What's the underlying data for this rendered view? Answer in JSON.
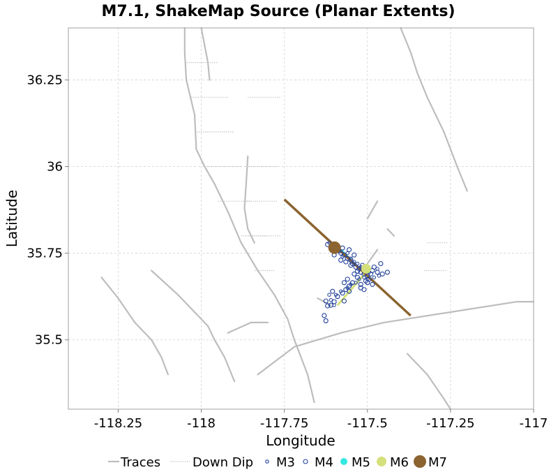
{
  "chart_data": {
    "type": "scatter",
    "title": "M7.1, ShakeMap Source (Planar Extents)",
    "xlabel": "Longitude",
    "ylabel": "Latitude",
    "xlim": [
      -118.4,
      -117.0
    ],
    "ylim": [
      35.3,
      36.4
    ],
    "x_ticks": [
      -118.25,
      -118,
      -117.75,
      -117.5,
      -117.25,
      -117
    ],
    "x_tick_labels": [
      "-118.25",
      "-118",
      "-117.75",
      "-117.5",
      "-117.25",
      "-117"
    ],
    "y_ticks": [
      35.5,
      35.75,
      36,
      36.25
    ],
    "y_tick_labels": [
      "35.5",
      "35.75",
      "36",
      "36.25"
    ],
    "grid": true,
    "legend_position": "bottom",
    "legend": [
      {
        "label": "Traces",
        "kind": "line",
        "color": "#bdbdbd"
      },
      {
        "label": "Down Dip",
        "kind": "dotted-line",
        "color": "#c4c4c4"
      },
      {
        "label": "M3",
        "kind": "marker",
        "color": "#1f3f99",
        "size": 3
      },
      {
        "label": "M4",
        "kind": "marker",
        "color": "#1f3f99",
        "size": 4
      },
      {
        "label": "M5",
        "kind": "marker",
        "color": "#33e8e0",
        "size": 5
      },
      {
        "label": "M6",
        "kind": "marker",
        "color": "#d4e07a",
        "size": 7
      },
      {
        "label": "M7",
        "kind": "marker",
        "color": "#8b6430",
        "size": 9
      }
    ],
    "rupture": {
      "name": "M7",
      "color": "#8b6430",
      "line": [
        [
          -117.75,
          35.905
        ],
        [
          -117.37,
          35.57
        ]
      ],
      "hypocenter": [
        -117.599,
        35.766
      ]
    },
    "m5_line": {
      "color": "#33e8e0",
      "line": [
        [
          -117.58,
          35.76
        ],
        [
          -117.55,
          35.73
        ]
      ]
    },
    "m6_line": {
      "color": "#d4e07a",
      "line": [
        [
          -117.59,
          35.6
        ],
        [
          -117.5,
          35.7
        ]
      ]
    },
    "m6_events": [
      [
        -117.504,
        35.705
      ]
    ],
    "m4_events": [
      [
        -117.62,
        35.775
      ],
      [
        -117.605,
        35.77
      ],
      [
        -117.595,
        35.76
      ],
      [
        -117.58,
        35.75
      ],
      [
        -117.57,
        35.745
      ],
      [
        -117.56,
        35.735
      ],
      [
        -117.55,
        35.73
      ],
      [
        -117.545,
        35.72
      ],
      [
        -117.535,
        35.71
      ],
      [
        -117.525,
        35.705
      ],
      [
        -117.52,
        35.695
      ],
      [
        -117.51,
        35.69
      ],
      [
        -117.5,
        35.685
      ],
      [
        -117.49,
        35.69
      ],
      [
        -117.485,
        35.7
      ],
      [
        -117.48,
        35.71
      ],
      [
        -117.47,
        35.695
      ],
      [
        -117.46,
        35.72
      ],
      [
        -117.455,
        35.69
      ],
      [
        -117.44,
        35.695
      ],
      [
        -117.53,
        35.68
      ],
      [
        -117.545,
        35.665
      ],
      [
        -117.555,
        35.655
      ],
      [
        -117.565,
        35.645
      ],
      [
        -117.575,
        35.635
      ],
      [
        -117.59,
        35.625
      ],
      [
        -117.6,
        35.61
      ],
      [
        -117.61,
        35.6
      ],
      [
        -117.62,
        35.598
      ],
      [
        -117.625,
        35.612
      ],
      [
        -117.57,
        35.665
      ],
      [
        -117.56,
        35.675
      ],
      [
        -117.54,
        35.69
      ],
      [
        -117.52,
        35.66
      ],
      [
        -117.505,
        35.67
      ],
      [
        -117.495,
        35.675
      ],
      [
        -117.54,
        35.745
      ],
      [
        -117.555,
        35.76
      ],
      [
        -117.575,
        35.765
      ],
      [
        -117.59,
        35.77
      ],
      [
        -117.6,
        35.745
      ],
      [
        -117.58,
        35.73
      ],
      [
        -117.565,
        35.725
      ],
      [
        -117.55,
        35.715
      ],
      [
        -117.53,
        35.698
      ],
      [
        -117.515,
        35.715
      ],
      [
        -117.5,
        35.665
      ],
      [
        -117.485,
        35.66
      ],
      [
        -117.51,
        35.645
      ],
      [
        -117.52,
        35.65
      ],
      [
        -117.63,
        35.57
      ],
      [
        -117.605,
        35.64
      ],
      [
        -117.625,
        35.555
      ],
      [
        -117.57,
        35.612
      ],
      [
        -117.555,
        35.64
      ]
    ],
    "m3_events": [
      [
        -117.615,
        35.78
      ],
      [
        -117.6,
        35.755
      ],
      [
        -117.585,
        35.755
      ],
      [
        -117.575,
        35.74
      ],
      [
        -117.56,
        35.75
      ],
      [
        -117.55,
        35.735
      ],
      [
        -117.54,
        35.725
      ],
      [
        -117.53,
        35.72
      ],
      [
        -117.52,
        35.71
      ],
      [
        -117.505,
        35.7
      ],
      [
        -117.495,
        35.695
      ],
      [
        -117.5,
        35.675
      ],
      [
        -117.51,
        35.68
      ],
      [
        -117.525,
        35.675
      ],
      [
        -117.535,
        35.665
      ],
      [
        -117.55,
        35.66
      ],
      [
        -117.56,
        35.65
      ],
      [
        -117.58,
        35.64
      ],
      [
        -117.595,
        35.63
      ],
      [
        -117.61,
        35.615
      ],
      [
        -117.615,
        35.63
      ],
      [
        -117.6,
        35.6
      ],
      [
        -117.48,
        35.68
      ],
      [
        -117.47,
        35.705
      ],
      [
        -117.465,
        35.685
      ]
    ],
    "traces": [
      [
        [
          -118.0,
          36.4
        ],
        [
          -117.98,
          36.3
        ],
        [
          -117.975,
          36.25
        ]
      ],
      [
        [
          -118.05,
          36.4
        ],
        [
          -118.05,
          36.33
        ],
        [
          -118.045,
          36.25
        ],
        [
          -118.02,
          36.15
        ],
        [
          -118.015,
          36.05
        ],
        [
          -117.99,
          36.0
        ],
        [
          -117.96,
          35.95
        ],
        [
          -117.92,
          35.87
        ],
        [
          -117.88,
          35.78
        ],
        [
          -117.83,
          35.7
        ],
        [
          -117.78,
          35.63
        ]
      ],
      [
        [
          -117.78,
          35.63
        ],
        [
          -117.74,
          35.56
        ],
        [
          -117.72,
          35.5
        ],
        [
          -117.7,
          35.45
        ],
        [
          -117.68,
          35.4
        ],
        [
          -117.66,
          35.32
        ]
      ],
      [
        [
          -117.86,
          36.03
        ],
        [
          -117.865,
          35.95
        ],
        [
          -117.87,
          35.88
        ],
        [
          -117.86,
          35.82
        ],
        [
          -117.84,
          35.78
        ]
      ],
      [
        [
          -118.15,
          35.7
        ],
        [
          -118.07,
          35.63
        ],
        [
          -118.02,
          35.58
        ],
        [
          -117.98,
          35.54
        ],
        [
          -117.96,
          35.5
        ],
        [
          -117.93,
          35.45
        ],
        [
          -117.9,
          35.38
        ]
      ],
      [
        [
          -118.3,
          35.68
        ],
        [
          -118.25,
          35.62
        ],
        [
          -118.2,
          35.55
        ],
        [
          -118.15,
          35.5
        ],
        [
          -118.12,
          35.45
        ],
        [
          -118.1,
          35.4
        ]
      ],
      [
        [
          -117.92,
          35.52
        ],
        [
          -117.85,
          35.55
        ],
        [
          -117.8,
          35.55
        ]
      ],
      [
        [
          -117.44,
          35.82
        ],
        [
          -117.42,
          35.8
        ]
      ],
      [
        [
          -117.47,
          35.76
        ],
        [
          -117.5,
          35.72
        ]
      ],
      [
        [
          -117.5,
          35.85
        ],
        [
          -117.47,
          35.9
        ]
      ],
      [
        [
          -117.83,
          35.4
        ],
        [
          -117.72,
          35.48
        ],
        [
          -117.58,
          35.52
        ],
        [
          -117.45,
          35.55
        ],
        [
          -117.25,
          35.58
        ],
        [
          -117.05,
          35.61
        ],
        [
          -117.0,
          35.61
        ]
      ],
      [
        [
          -117.4,
          36.4
        ],
        [
          -117.37,
          36.33
        ],
        [
          -117.35,
          36.27
        ],
        [
          -117.32,
          36.2
        ],
        [
          -117.27,
          36.1
        ],
        [
          -117.23,
          36.0
        ],
        [
          -117.2,
          35.93
        ]
      ],
      [
        [
          -117.65,
          35.62
        ],
        [
          -117.61,
          35.6
        ]
      ],
      [
        [
          -117.38,
          35.46
        ],
        [
          -117.32,
          35.4
        ],
        [
          -117.27,
          35.33
        ],
        [
          -117.25,
          35.3
        ]
      ]
    ],
    "downdip_segments": [
      [
        [
          -118.05,
          36.3
        ],
        [
          -117.95,
          36.3
        ]
      ],
      [
        [
          -118.03,
          36.2
        ],
        [
          -117.92,
          36.2
        ]
      ],
      [
        [
          -118.02,
          36.1
        ],
        [
          -117.9,
          36.1
        ]
      ],
      [
        [
          -117.99,
          36.0
        ],
        [
          -117.88,
          36.0
        ]
      ],
      [
        [
          -117.95,
          35.9
        ],
        [
          -117.85,
          35.9
        ]
      ],
      [
        [
          -117.88,
          35.8
        ],
        [
          -117.8,
          35.8
        ]
      ],
      [
        [
          -117.84,
          35.7
        ],
        [
          -117.78,
          35.7
        ]
      ],
      [
        [
          -117.86,
          36.2
        ],
        [
          -117.76,
          36.2
        ]
      ],
      [
        [
          -117.87,
          36.0
        ],
        [
          -117.77,
          36.0
        ]
      ],
      [
        [
          -117.87,
          35.9
        ],
        [
          -117.77,
          35.9
        ]
      ],
      [
        [
          -117.86,
          35.8
        ],
        [
          -117.76,
          35.8
        ]
      ],
      [
        [
          -117.32,
          35.78
        ],
        [
          -117.26,
          35.78
        ]
      ],
      [
        [
          -117.33,
          35.7
        ],
        [
          -117.26,
          35.7
        ]
      ]
    ]
  }
}
